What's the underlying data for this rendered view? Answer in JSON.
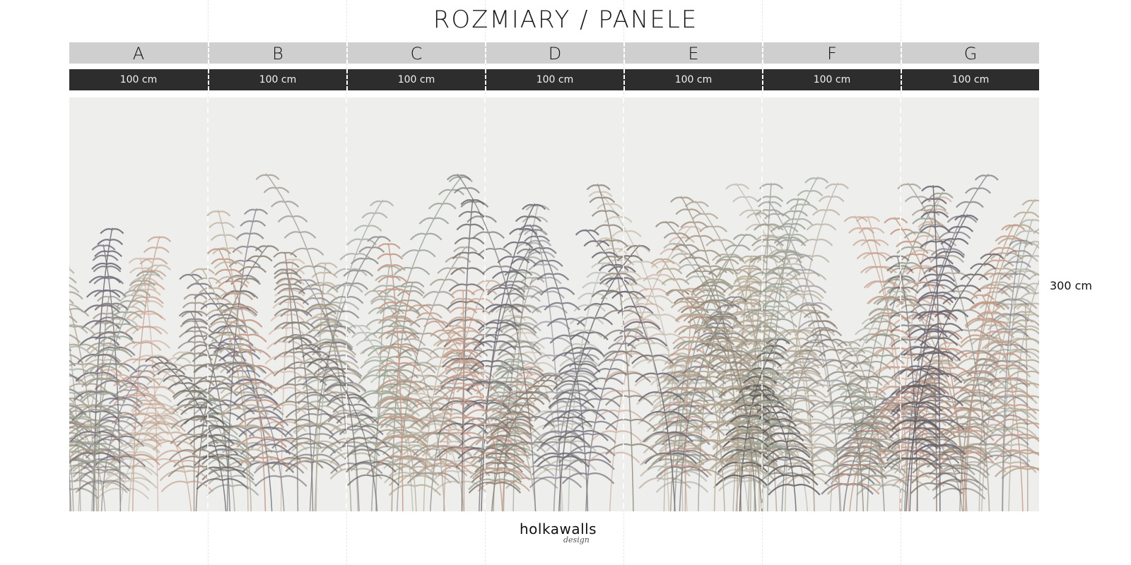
{
  "title": "ROZMIARY / PANELE",
  "panels": [
    {
      "label": "A",
      "width": "100 cm"
    },
    {
      "label": "B",
      "width": "100 cm"
    },
    {
      "label": "C",
      "width": "100 cm"
    },
    {
      "label": "D",
      "width": "100 cm"
    },
    {
      "label": "E",
      "width": "100 cm"
    },
    {
      "label": "F",
      "width": "100 cm"
    },
    {
      "label": "G",
      "width": "100 cm"
    }
  ],
  "height_label": "300 cm",
  "logo": {
    "name": "holkawalls",
    "sub": "design"
  },
  "colors": {
    "letter_bar": "#cfcfcf",
    "width_bar": "#2d2d2d",
    "background": "#eeeeec",
    "fronds": [
      "#8a7f72",
      "#a69a8a",
      "#5e5a5c",
      "#c49a88",
      "#9aa394",
      "#6c6875",
      "#b8ab96"
    ]
  }
}
